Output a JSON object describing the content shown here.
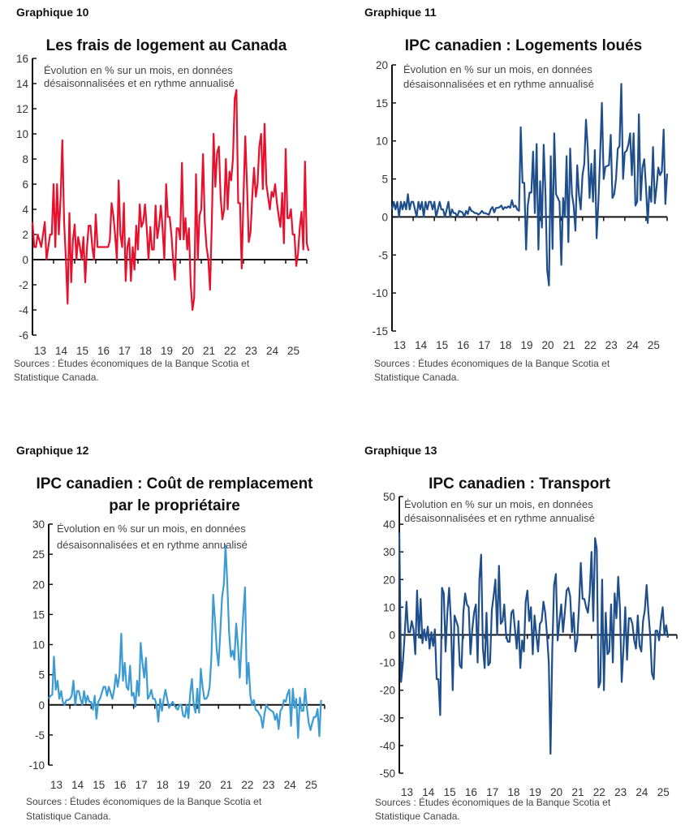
{
  "chart_data": [
    {
      "label": "Graphique 10",
      "type": "line",
      "title": [
        "Les frais de logement au Canada"
      ],
      "subtitle": [
        "Évolution en % sur un mois, en données",
        "désaisonnalisées et en rythme annualisé"
      ],
      "source": [
        "Sources : Études économiques de la Banque Scotia et",
        "Statistique Canada."
      ],
      "x_start": "2013-01",
      "frequency": "monthly",
      "xticks": [
        "13",
        "14",
        "15",
        "16",
        "17",
        "18",
        "19",
        "20",
        "21",
        "22",
        "23",
        "24",
        "25"
      ],
      "ylim": [
        -6,
        16
      ],
      "yticks": [
        -6,
        -4,
        -2,
        0,
        2,
        4,
        6,
        8,
        10,
        12,
        14,
        16
      ],
      "color": "#e8112d",
      "values": [
        3,
        1,
        1,
        2,
        1.5,
        1,
        2,
        3,
        0,
        1,
        2,
        2,
        6,
        1,
        6,
        2,
        5,
        9.5,
        3,
        0,
        -3.5,
        3.7,
        -1.8,
        1.5,
        2.8,
        0,
        1.8,
        1,
        0,
        1.8,
        -1.8,
        1,
        2.7,
        2.7,
        1,
        0,
        3.6,
        1,
        1,
        1,
        1,
        1,
        1,
        1,
        1.5,
        4.5,
        3.5,
        2,
        0,
        6.3,
        2,
        1,
        4.5,
        -1.7,
        1,
        1.7,
        -1.7,
        1,
        -0.8,
        2.7,
        0.8,
        4.4,
        2.6,
        3,
        4.4,
        2.5,
        0,
        2.6,
        0.8,
        0.8,
        4.3,
        1.7,
        2.7,
        4.3,
        2.5,
        0,
        6,
        3.4,
        3.4,
        2,
        0,
        -1.6,
        2.5,
        2.5,
        1.6,
        7.7,
        1.6,
        3.3,
        0.8,
        2.5,
        -2,
        -4,
        -3,
        6.8,
        0,
        3.5,
        4,
        8.4,
        3,
        1,
        0,
        -2.4,
        3,
        10,
        5.8,
        8.5,
        9,
        5,
        3.2,
        4,
        8,
        4,
        7,
        6.3,
        8,
        12.8,
        13.5,
        4.5,
        4.5,
        -0.7,
        5,
        9.8,
        6,
        1.4,
        2.2,
        5,
        7.3,
        5,
        6,
        9,
        10,
        5.6,
        10.8,
        6,
        5,
        4,
        5.4,
        5,
        6,
        4.5,
        3.5,
        2.6,
        5.3,
        1.3,
        8.8,
        3.3,
        3.3,
        4,
        2,
        2,
        -0.5,
        0.5,
        2.5,
        3.8,
        0.8,
        7.8,
        1.3,
        0.7
      ]
    },
    {
      "label": "Graphique 11",
      "type": "line",
      "title": [
        "IPC canadien : Logements loués"
      ],
      "subtitle": [
        "Évolution en % sur un mois, en données",
        "désaisonnalisées et en rythme annualisé"
      ],
      "source": [
        "Sources : Études économiques de la Banque Scotia et",
        "Statistique Canada."
      ],
      "x_start": "2013-01",
      "frequency": "monthly",
      "xticks": [
        "13",
        "14",
        "15",
        "16",
        "17",
        "18",
        "19",
        "20",
        "21",
        "22",
        "23",
        "24",
        "25"
      ],
      "ylim": [
        -15,
        20
      ],
      "yticks": [
        -15,
        -10,
        -5,
        0,
        5,
        10,
        15,
        20
      ],
      "color": "#1f4e8c",
      "values": [
        1,
        2,
        1,
        2,
        0,
        2,
        1,
        2,
        1,
        3,
        1,
        2,
        2,
        1,
        0,
        2,
        1,
        2,
        0,
        2,
        1,
        2,
        2,
        1,
        2,
        0,
        1,
        2,
        1,
        1,
        0,
        1,
        2,
        0,
        1,
        0.5,
        0.5,
        0,
        0.8,
        0.7,
        0.6,
        0,
        0.8,
        0.4,
        1.3,
        0.8,
        0.7,
        0.5,
        0.5,
        0.3,
        0.5,
        0.8,
        0.5,
        0.5,
        0.4,
        0.3,
        1,
        1.3,
        0.6,
        1.2,
        1.2,
        1.3,
        1.5,
        1,
        1.3,
        1.2,
        1.4,
        1.2,
        2.2,
        1.3,
        1.5,
        1,
        0.8,
        11.8,
        4.5,
        4.5,
        -4.3,
        1.5,
        3.2,
        3.2,
        8.6,
        0.5,
        9.6,
        -4.3,
        4.7,
        -1.4,
        9.5,
        3,
        -7,
        -9,
        8,
        -4.2,
        11,
        3,
        2.5,
        2,
        -6.3,
        2.5,
        0,
        8,
        -3.3,
        9,
        3,
        1.5,
        -1.8,
        6.8,
        3,
        1,
        5.5,
        7,
        12.8,
        9,
        2.5,
        7,
        2,
        8.8,
        -2.8,
        2,
        8,
        15,
        5,
        6.6,
        6.7,
        6.8,
        10.8,
        2.5,
        3,
        5,
        9,
        9.3,
        17.5,
        5,
        8.5,
        8.7,
        9.5,
        11,
        5.5,
        11,
        1.5,
        2,
        13.5,
        2.2,
        6.5,
        7.6,
        4,
        -0.8,
        4,
        2,
        9.2,
        1.8,
        4,
        6.5,
        5.5,
        6,
        11.5,
        1.7,
        5.7
      ]
    },
    {
      "label": "Graphique 12",
      "type": "line",
      "title": [
        "IPC canadien : Coût de remplacement",
        "par le propriétaire"
      ],
      "subtitle": [
        "Évolution en % sur un mois, en données",
        "désaisonnalisées et en rythme annualisé"
      ],
      "source": [
        "Sources : Études économiques de la Banque Scotia et",
        "Statistique Canada."
      ],
      "x_start": "2013-01",
      "frequency": "monthly",
      "xticks": [
        "13",
        "14",
        "15",
        "16",
        "17",
        "18",
        "19",
        "20",
        "21",
        "22",
        "23",
        "24",
        "25"
      ],
      "ylim": [
        -10,
        30
      ],
      "yticks": [
        -10,
        -5,
        0,
        5,
        10,
        15,
        20,
        25,
        30
      ],
      "color": "#3d9bd4",
      "values": [
        1,
        1.5,
        1.7,
        8,
        2.5,
        4,
        1,
        2.3,
        0.5,
        0,
        0.8,
        0.8,
        1,
        1.5,
        4,
        0,
        2.3,
        2.3,
        1,
        0,
        2.3,
        0.3,
        1.5,
        0.5,
        0.5,
        -0.8,
        1.5,
        -2.3,
        0.5,
        1,
        2,
        3,
        3,
        1.5,
        3,
        2,
        1,
        2.5,
        5,
        3,
        5,
        11.8,
        4,
        7,
        3,
        2.5,
        6.5,
        1.5,
        2,
        -0.3,
        4,
        1.5,
        10.3,
        7,
        4.5,
        7.8,
        1,
        1.5,
        2.5,
        1,
        1,
        0,
        -2.8,
        1,
        -1,
        1,
        2.5,
        1,
        -0.5,
        0,
        0.5,
        0,
        -0.5,
        -0.8,
        0,
        0,
        -1.8,
        -2,
        0,
        -2.2,
        2,
        4.3,
        0,
        -1.3,
        2.7,
        -1.3,
        6,
        3,
        1,
        1,
        1.5,
        3,
        8,
        18.3,
        14,
        9,
        6.5,
        12,
        17.8,
        20,
        26.5,
        20,
        12,
        8,
        9,
        7.5,
        13.5,
        10,
        4.5,
        10,
        15,
        19.5,
        3.5,
        7,
        1.5,
        0,
        0.8,
        -0.8,
        -1,
        -1.5,
        -2,
        -3.8,
        -1.5,
        0,
        -0.5,
        -0.8,
        -1,
        -1.2,
        -2.5,
        -1.5,
        -4,
        -1,
        -0.5,
        0.8,
        0.5,
        1.8,
        2.5,
        -3.5,
        2.7,
        -0.5,
        1,
        -5.5,
        1.2,
        -1,
        -1,
        2.7,
        -0.5,
        -3,
        -4.2,
        -3,
        -2,
        -2,
        -0.7,
        -5.2,
        0.8
      ]
    },
    {
      "label": "Graphique 13",
      "type": "line",
      "title": [
        "IPC canadien : Transport"
      ],
      "subtitle": [
        "Évolution en % sur un mois, en données",
        "désaisonnalisées et en rythme annualisé"
      ],
      "source": [
        "Sources : Études économiques de la Banque Scotia et",
        "Statistique Canada."
      ],
      "x_start": "2013-01",
      "frequency": "monthly",
      "xticks": [
        "13",
        "14",
        "15",
        "16",
        "17",
        "18",
        "19",
        "20",
        "21",
        "22",
        "23",
        "24",
        "25"
      ],
      "ylim": [
        -50,
        50
      ],
      "yticks": [
        -50,
        -40,
        -30,
        -20,
        -10,
        0,
        10,
        20,
        30,
        40,
        50
      ],
      "color": "#1f4e8c",
      "values": [
        37,
        -17,
        -10,
        0,
        12,
        1,
        1,
        5,
        2,
        -7,
        16,
        -1,
        13,
        -3,
        2,
        -2,
        3,
        -5,
        1,
        -4,
        2,
        -16,
        -16,
        -29,
        17,
        15,
        -6,
        8,
        17,
        5,
        -20,
        7,
        5,
        3,
        -11,
        -12,
        8,
        15,
        11,
        10,
        -7,
        2,
        8,
        11,
        -10,
        20,
        29,
        -5,
        -12,
        8,
        -11,
        -10,
        9,
        14,
        20,
        0,
        25,
        4,
        5,
        11,
        0,
        -2.5,
        -2.5,
        8,
        9,
        2,
        -5,
        5,
        -12,
        -2,
        -6,
        12,
        16,
        5,
        10,
        -7,
        7,
        0,
        -6,
        4,
        5,
        12,
        8,
        0,
        -10,
        -43,
        -5,
        18,
        22,
        -2,
        5,
        11,
        1,
        8,
        16,
        17,
        14,
        1,
        8,
        -6,
        -2,
        10,
        26,
        13,
        13,
        10,
        8,
        15,
        30,
        5,
        35,
        31,
        -19,
        -17,
        20,
        -20,
        8,
        -7,
        -6,
        11,
        -10,
        15,
        6,
        21,
        10,
        -17,
        -5,
        10,
        -9,
        6,
        6,
        4,
        -2,
        -5,
        7,
        -4,
        -6,
        5,
        9,
        18,
        8,
        0,
        -14,
        -16,
        1.5,
        1.5,
        -2,
        5,
        10,
        0,
        3.5,
        -1
      ]
    }
  ]
}
